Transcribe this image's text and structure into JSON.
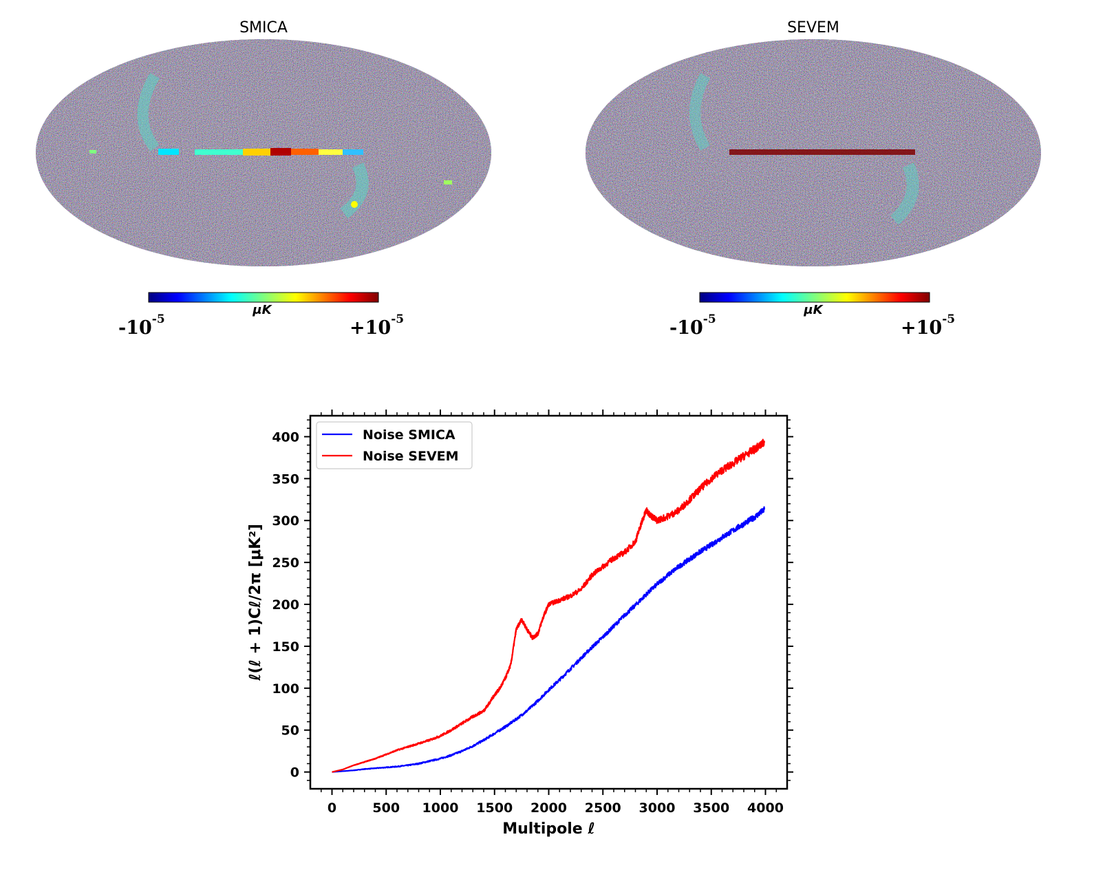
{
  "maps": [
    {
      "title": "SMICA",
      "colorbar": {
        "unit": "μK",
        "min_base": "-10",
        "min_exp": "-5",
        "max_base": "+10",
        "max_exp": "-5"
      },
      "features": "bright-galactic-plane-residuals"
    },
    {
      "title": "SEVEM",
      "colorbar": {
        "unit": "μK",
        "min_base": "-10",
        "min_exp": "-5",
        "max_base": "+10",
        "max_exp": "-5"
      },
      "features": "dark-red-galactic-plane"
    }
  ],
  "colors": {
    "colormap": [
      "#00007f",
      "#0000ff",
      "#007fff",
      "#00ffff",
      "#7fff7f",
      "#ffff00",
      "#ff7f00",
      "#ff0000",
      "#7f0000"
    ],
    "smica_line": "#0000ff",
    "sevem_line": "#ff0000"
  },
  "chart_data": {
    "type": "line",
    "xlabel": "Multipole ℓ",
    "ylabel": "ℓ(ℓ + 1)Cℓ/2π [μK²]",
    "xlim": [
      -200,
      4200
    ],
    "ylim": [
      -20,
      425
    ],
    "xticks": [
      0,
      500,
      1000,
      1500,
      2000,
      2500,
      3000,
      3500,
      4000
    ],
    "yticks": [
      0,
      50,
      100,
      150,
      200,
      250,
      300,
      350,
      400
    ],
    "legend_position": "upper-left",
    "series": [
      {
        "name": "Noise SMICA",
        "color": "#0000ff",
        "x": [
          0,
          100,
          200,
          300,
          400,
          500,
          600,
          700,
          800,
          900,
          1000,
          1100,
          1200,
          1300,
          1400,
          1500,
          1600,
          1700,
          1800,
          1900,
          2000,
          2100,
          2200,
          2300,
          2400,
          2500,
          2600,
          2700,
          2800,
          2900,
          3000,
          3100,
          3200,
          3300,
          3400,
          3500,
          3600,
          3700,
          3800,
          3900,
          3990
        ],
        "y": [
          0,
          1,
          2,
          3.5,
          4.5,
          5.5,
          6.5,
          8,
          10,
          13,
          16,
          20,
          25,
          31,
          38,
          46,
          54,
          63,
          73,
          85,
          98,
          110,
          123,
          136,
          149,
          161,
          174,
          187,
          199,
          212,
          224,
          235,
          245,
          254,
          263,
          271,
          280,
          288,
          296,
          304,
          313
        ]
      },
      {
        "name": "Noise SEVEM",
        "color": "#ff0000",
        "x": [
          0,
          100,
          200,
          300,
          400,
          500,
          600,
          700,
          800,
          900,
          1000,
          1100,
          1200,
          1300,
          1400,
          1450,
          1500,
          1550,
          1600,
          1650,
          1700,
          1750,
          1800,
          1850,
          1900,
          1950,
          2000,
          2100,
          2200,
          2300,
          2400,
          2500,
          2600,
          2700,
          2800,
          2850,
          2900,
          2950,
          3000,
          3100,
          3200,
          3300,
          3400,
          3500,
          3600,
          3700,
          3800,
          3900,
          3990
        ],
        "y": [
          0,
          3,
          8,
          12,
          16,
          21,
          26,
          30,
          34,
          38,
          43,
          50,
          58,
          66,
          73,
          82,
          92,
          100,
          112,
          128,
          170,
          182,
          170,
          160,
          165,
          185,
          200,
          205,
          210,
          218,
          235,
          245,
          255,
          262,
          275,
          295,
          312,
          305,
          300,
          305,
          312,
          325,
          338,
          350,
          360,
          368,
          377,
          385,
          393
        ]
      }
    ]
  }
}
